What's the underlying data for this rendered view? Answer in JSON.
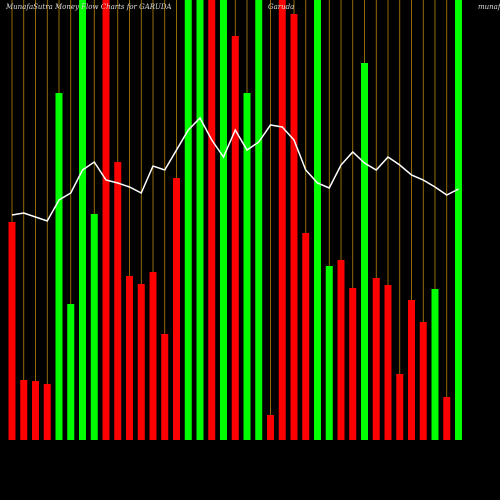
{
  "chart_data": {
    "type": "bar",
    "title": "MunafaSutra  Money Flow  Charts for GARUDA",
    "subtitle": "Garuda",
    "watermark": "munafa",
    "ylim": [
      0,
      440
    ],
    "separator_color": "#b8860b",
    "bars": {
      "values": [
        218,
        60,
        59,
        56,
        347,
        136,
        440,
        226,
        440,
        278,
        164,
        156,
        168,
        106,
        262,
        440,
        440,
        440,
        440,
        404,
        347,
        440,
        25,
        440,
        426,
        207,
        440,
        174,
        180,
        152,
        377,
        162,
        155,
        66,
        140,
        118,
        151,
        43,
        440
      ],
      "colors": [
        "#ff0000",
        "#ff0000",
        "#ff0000",
        "#ff0000",
        "#00ff00",
        "#00ff00",
        "#00ff00",
        "#00ff00",
        "#ff0000",
        "#ff0000",
        "#ff0000",
        "#ff0000",
        "#ff0000",
        "#ff0000",
        "#ff0000",
        "#00ff00",
        "#00ff00",
        "#ff0000",
        "#00ff00",
        "#ff0000",
        "#00ff00",
        "#00ff00",
        "#ff0000",
        "#ff0000",
        "#ff0000",
        "#ff0000",
        "#00ff00",
        "#00ff00",
        "#ff0000",
        "#ff0000",
        "#00ff00",
        "#ff0000",
        "#ff0000",
        "#ff0000",
        "#ff0000",
        "#ff0000",
        "#00ff00",
        "#ff0000",
        "#00ff00"
      ]
    },
    "line": {
      "color": "#ffffff",
      "values": [
        225,
        227,
        223,
        219,
        240,
        247,
        270,
        278,
        260,
        257,
        253,
        247,
        274,
        270,
        290,
        310,
        322,
        300,
        283,
        310,
        290,
        298,
        315,
        313,
        300,
        270,
        257,
        252,
        275,
        288,
        277,
        270,
        283,
        275,
        265,
        260,
        253,
        245,
        251
      ]
    }
  }
}
